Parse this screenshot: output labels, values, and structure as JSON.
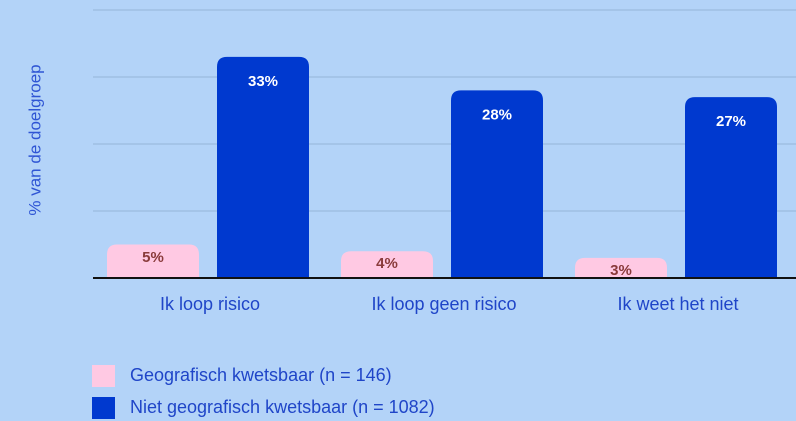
{
  "chart_data": {
    "type": "bar",
    "y_label": "% van de doelgroep",
    "categories": [
      "Ik loop risico",
      "Ik loop geen risico",
      "Ik weet het niet"
    ],
    "series": [
      {
        "name": "Geografisch kwetsbaar (n = 146)",
        "color": "#ffc9e3",
        "label_color": "#8a3b3b",
        "values": [
          5,
          4,
          3
        ],
        "value_labels": [
          "5%",
          "4%",
          "3%"
        ]
      },
      {
        "name": "Niet geografisch kwetsbaar (n = 1082)",
        "color": "#0039cf",
        "label_color": "#ffffff",
        "values": [
          33,
          28,
          27
        ],
        "value_labels": [
          "33%",
          "28%",
          "27%"
        ]
      }
    ],
    "ylim": [
      0,
      40
    ],
    "yticks": [
      0,
      10,
      20,
      30,
      40
    ],
    "grid": true
  }
}
